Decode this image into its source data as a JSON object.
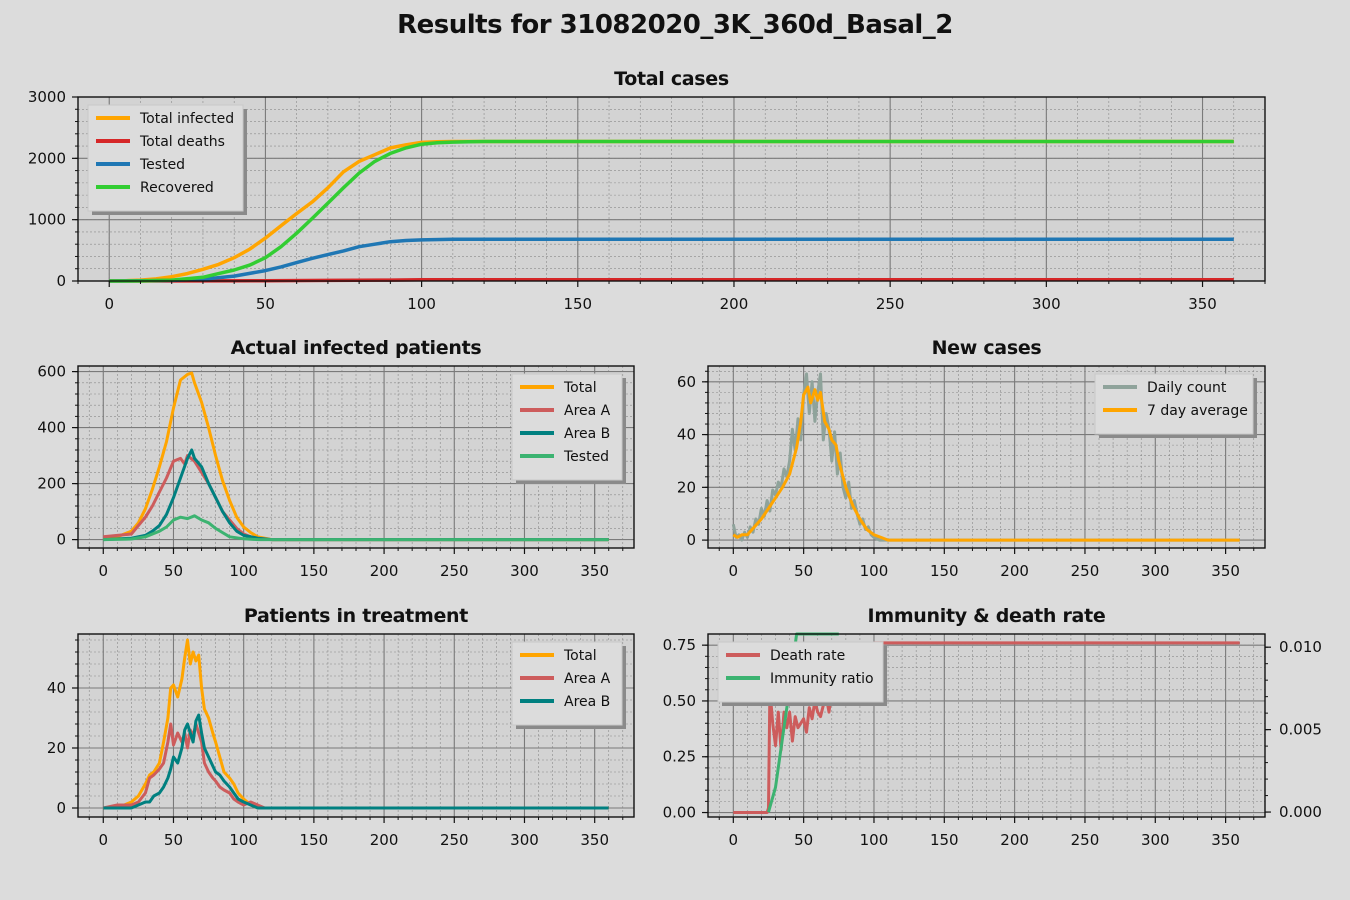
{
  "title": "Results for 31082020_3K_360d_Basal_2",
  "colors": {
    "background": "#dcdcdc",
    "orange": "#ffa500",
    "red": "#d62728",
    "blue": "#1f77b4",
    "green": "#32cd32",
    "indianred": "#cd5c5c",
    "teal": "#008080",
    "mediumseagreen": "#3cb371",
    "gray": "#8fa39b"
  },
  "chart_data": [
    {
      "id": "total",
      "type": "line",
      "title": "Total cases",
      "xlim": [
        -10,
        370
      ],
      "ylim": [
        0,
        3000
      ],
      "xticks": [
        0,
        50,
        100,
        150,
        200,
        250,
        300,
        350
      ],
      "yticks": [
        0,
        1000,
        2000,
        3000
      ],
      "legend": "top-left",
      "grid": true,
      "series": [
        {
          "name": "Total infected",
          "color": "#ffa500",
          "x": [
            0,
            5,
            10,
            15,
            20,
            25,
            30,
            35,
            40,
            45,
            50,
            55,
            60,
            65,
            70,
            75,
            80,
            85,
            90,
            95,
            100,
            105,
            110,
            120,
            130,
            360
          ],
          "y": [
            0,
            5,
            15,
            35,
            70,
            120,
            190,
            270,
            380,
            520,
            700,
            900,
            1100,
            1290,
            1520,
            1780,
            1950,
            2060,
            2170,
            2220,
            2260,
            2270,
            2275,
            2275,
            2275,
            2275
          ]
        },
        {
          "name": "Total deaths",
          "color": "#d62728",
          "x": [
            0,
            30,
            50,
            70,
            90,
            100,
            360
          ],
          "y": [
            0,
            2,
            5,
            10,
            15,
            20,
            20
          ]
        },
        {
          "name": "Tested",
          "color": "#1f77b4",
          "x": [
            0,
            20,
            30,
            40,
            50,
            55,
            60,
            65,
            70,
            75,
            80,
            85,
            90,
            95,
            100,
            110,
            360
          ],
          "y": [
            0,
            10,
            30,
            80,
            170,
            230,
            300,
            370,
            430,
            490,
            560,
            600,
            640,
            660,
            670,
            680,
            680
          ]
        },
        {
          "name": "Recovered",
          "color": "#32cd32",
          "x": [
            0,
            10,
            20,
            30,
            35,
            40,
            45,
            50,
            55,
            60,
            65,
            70,
            75,
            80,
            85,
            90,
            95,
            100,
            105,
            110,
            115,
            120,
            360
          ],
          "y": [
            0,
            0,
            15,
            60,
            120,
            180,
            260,
            380,
            560,
            780,
            1020,
            1270,
            1520,
            1760,
            1950,
            2080,
            2170,
            2230,
            2255,
            2265,
            2270,
            2275,
            2275
          ]
        }
      ]
    },
    {
      "id": "actual",
      "type": "line",
      "title": "Actual infected patients",
      "xlim": [
        -18,
        378
      ],
      "ylim": [
        -30,
        620
      ],
      "xticks": [
        0,
        50,
        100,
        150,
        200,
        250,
        300,
        350
      ],
      "yticks": [
        0,
        200,
        400,
        600
      ],
      "legend": "top-right",
      "grid": true,
      "series": [
        {
          "name": "Total",
          "color": "#ffa500",
          "x": [
            0,
            10,
            20,
            25,
            30,
            35,
            40,
            45,
            50,
            55,
            60,
            63,
            65,
            70,
            75,
            80,
            85,
            90,
            95,
            100,
            105,
            110,
            120,
            130,
            360
          ],
          "y": [
            0,
            10,
            30,
            60,
            110,
            180,
            260,
            350,
            470,
            570,
            590,
            595,
            560,
            490,
            400,
            300,
            210,
            140,
            80,
            45,
            25,
            10,
            0,
            0,
            0
          ]
        },
        {
          "name": "Area A",
          "color": "#cd5c5c",
          "x": [
            0,
            10,
            20,
            25,
            30,
            35,
            40,
            45,
            50,
            55,
            58,
            60,
            65,
            70,
            75,
            80,
            85,
            90,
            95,
            100,
            105,
            110,
            120,
            360
          ],
          "y": [
            10,
            15,
            20,
            50,
            80,
            120,
            170,
            220,
            280,
            290,
            270,
            300,
            280,
            240,
            200,
            150,
            100,
            70,
            40,
            20,
            10,
            5,
            0,
            0
          ]
        },
        {
          "name": "Area B",
          "color": "#008080",
          "x": [
            0,
            20,
            30,
            35,
            40,
            45,
            50,
            55,
            60,
            63,
            65,
            70,
            75,
            80,
            85,
            90,
            95,
            100,
            110,
            120,
            360
          ],
          "y": [
            0,
            5,
            15,
            30,
            50,
            90,
            150,
            220,
            290,
            320,
            290,
            260,
            200,
            150,
            100,
            60,
            30,
            15,
            5,
            0,
            0
          ]
        },
        {
          "name": "Tested",
          "color": "#3cb371",
          "x": [
            0,
            20,
            30,
            40,
            45,
            50,
            55,
            60,
            65,
            70,
            75,
            80,
            85,
            90,
            100,
            110,
            120,
            360
          ],
          "y": [
            0,
            2,
            10,
            30,
            45,
            70,
            80,
            75,
            85,
            70,
            60,
            40,
            25,
            10,
            3,
            0,
            0,
            0
          ]
        }
      ]
    },
    {
      "id": "newcases",
      "type": "line",
      "title": "New cases",
      "xlim": [
        -18,
        378
      ],
      "ylim": [
        -3,
        66
      ],
      "xticks": [
        0,
        50,
        100,
        150,
        200,
        250,
        300,
        350
      ],
      "yticks": [
        0,
        20,
        40,
        60
      ],
      "legend": "top-right",
      "grid": true,
      "series": [
        {
          "name": "Daily count",
          "color": "#8fa39b",
          "x": [
            0,
            2,
            4,
            6,
            8,
            10,
            12,
            14,
            16,
            18,
            20,
            22,
            24,
            26,
            28,
            30,
            32,
            34,
            36,
            38,
            40,
            42,
            44,
            46,
            48,
            50,
            52,
            54,
            56,
            58,
            60,
            62,
            64,
            66,
            68,
            70,
            72,
            74,
            76,
            78,
            80,
            82,
            84,
            86,
            88,
            90,
            92,
            94,
            96,
            98,
            100,
            104,
            108,
            112,
            360
          ],
          "y": [
            6,
            1,
            2,
            0,
            3,
            1,
            5,
            3,
            8,
            6,
            12,
            9,
            15,
            11,
            19,
            17,
            22,
            20,
            27,
            24,
            30,
            42,
            34,
            46,
            38,
            55,
            63,
            48,
            60,
            45,
            56,
            63,
            38,
            48,
            42,
            30,
            41,
            25,
            33,
            20,
            16,
            22,
            12,
            15,
            10,
            6,
            8,
            4,
            5,
            2,
            1,
            0,
            0,
            0,
            0
          ]
        },
        {
          "name": "7 day average",
          "color": "#ffa500",
          "x": [
            0,
            3,
            6,
            10,
            15,
            20,
            25,
            30,
            35,
            40,
            45,
            48,
            50,
            53,
            55,
            58,
            60,
            62,
            65,
            68,
            70,
            73,
            75,
            80,
            85,
            90,
            95,
            100,
            105,
            110,
            120,
            360
          ],
          "y": [
            2,
            1,
            2,
            2,
            5,
            8,
            12,
            16,
            20,
            25,
            35,
            45,
            55,
            58,
            52,
            57,
            53,
            56,
            45,
            42,
            38,
            36,
            30,
            20,
            13,
            8,
            4,
            2,
            1,
            0,
            0,
            0
          ]
        }
      ]
    },
    {
      "id": "treatment",
      "type": "line",
      "title": "Patients in treatment",
      "xlim": [
        -18,
        378
      ],
      "ylim": [
        -3,
        58
      ],
      "xticks": [
        0,
        50,
        100,
        150,
        200,
        250,
        300,
        350
      ],
      "yticks": [
        0,
        20,
        40
      ],
      "legend": "top-right",
      "grid": true,
      "series": [
        {
          "name": "Total",
          "color": "#ffa500",
          "x": [
            0,
            10,
            15,
            20,
            25,
            30,
            33,
            36,
            40,
            43,
            46,
            48,
            50,
            53,
            56,
            58,
            60,
            62,
            64,
            66,
            68,
            70,
            72,
            75,
            78,
            80,
            83,
            86,
            90,
            93,
            96,
            100,
            105,
            110,
            115,
            360
          ],
          "y": [
            0,
            0,
            1,
            2,
            4,
            8,
            11,
            12,
            15,
            22,
            30,
            40,
            41,
            37,
            43,
            50,
            56,
            48,
            52,
            49,
            51,
            40,
            33,
            30,
            25,
            22,
            17,
            12,
            10,
            8,
            5,
            3,
            1,
            0,
            0,
            0
          ]
        },
        {
          "name": "Area A",
          "color": "#cd5c5c",
          "x": [
            0,
            10,
            15,
            20,
            25,
            30,
            33,
            36,
            40,
            43,
            46,
            48,
            50,
            53,
            56,
            58,
            60,
            62,
            64,
            66,
            68,
            70,
            72,
            75,
            78,
            80,
            83,
            86,
            90,
            93,
            96,
            100,
            105,
            110,
            115,
            360
          ],
          "y": [
            0,
            1,
            1,
            1,
            2,
            5,
            10,
            11,
            13,
            15,
            22,
            28,
            21,
            25,
            22,
            25,
            20,
            26,
            24,
            28,
            25,
            22,
            15,
            12,
            10,
            9,
            7,
            6,
            5,
            3,
            2,
            1,
            2,
            1,
            0,
            0
          ]
        },
        {
          "name": "Area B",
          "color": "#008080",
          "x": [
            0,
            10,
            15,
            20,
            25,
            30,
            33,
            36,
            40,
            43,
            46,
            48,
            50,
            53,
            56,
            58,
            60,
            62,
            64,
            66,
            68,
            70,
            72,
            75,
            78,
            80,
            83,
            86,
            90,
            93,
            96,
            100,
            105,
            110,
            115,
            360
          ],
          "y": [
            0,
            0,
            0,
            0,
            1,
            2,
            2,
            4,
            5,
            7,
            10,
            13,
            17,
            15,
            20,
            26,
            28,
            25,
            22,
            29,
            31,
            25,
            20,
            17,
            14,
            12,
            11,
            9,
            7,
            5,
            3,
            2,
            1,
            0,
            0,
            0
          ]
        }
      ]
    },
    {
      "id": "immunity",
      "type": "line",
      "title": "Immunity & death rate",
      "xlim": [
        -18,
        378
      ],
      "ylim": [
        -0.02,
        0.8
      ],
      "y2lim": [
        -0.0003,
        0.0108
      ],
      "xticks": [
        0,
        50,
        100,
        150,
        200,
        250,
        300,
        350
      ],
      "yticks": [
        0.0,
        0.25,
        0.5,
        0.75
      ],
      "ytick_labels": [
        "0.00",
        "0.25",
        "0.50",
        "0.75"
      ],
      "y2ticks": [
        0.0,
        0.005,
        0.01
      ],
      "y2tick_labels": [
        "0.000",
        "0.005",
        "0.010"
      ],
      "legend": "top-left",
      "grid": true,
      "series": [
        {
          "name": "Death rate",
          "color": "#cd5c5c",
          "x": [
            0,
            24,
            25,
            26,
            28,
            30,
            32,
            34,
            36,
            38,
            40,
            42,
            44,
            46,
            48,
            50,
            52,
            54,
            56,
            58,
            60,
            62,
            64,
            66,
            68,
            70,
            72,
            74,
            76,
            80,
            85,
            90,
            95,
            100,
            360
          ],
          "y": [
            0,
            0,
            0.02,
            0.55,
            0.4,
            0.3,
            0.45,
            0.28,
            0.45,
            0.38,
            0.45,
            0.32,
            0.43,
            0.38,
            0.4,
            0.42,
            0.36,
            0.47,
            0.42,
            0.5,
            0.45,
            0.43,
            0.48,
            0.52,
            0.45,
            0.55,
            0.5,
            0.52,
            0.6,
            0.65,
            0.7,
            0.73,
            0.75,
            0.76,
            0.76
          ]
        },
        {
          "name": "Immunity ratio",
          "color": "#3cb371",
          "x": [
            25,
            30,
            35,
            40,
            45,
            50,
            55,
            60,
            65,
            70,
            75
          ],
          "y": [
            0.0,
            0.0015,
            0.0045,
            0.0075,
            0.011,
            0.0165,
            0.0245,
            0.035,
            0.0475,
            0.0605,
            0.074
          ],
          "axis": "right-scaled"
        }
      ]
    }
  ]
}
